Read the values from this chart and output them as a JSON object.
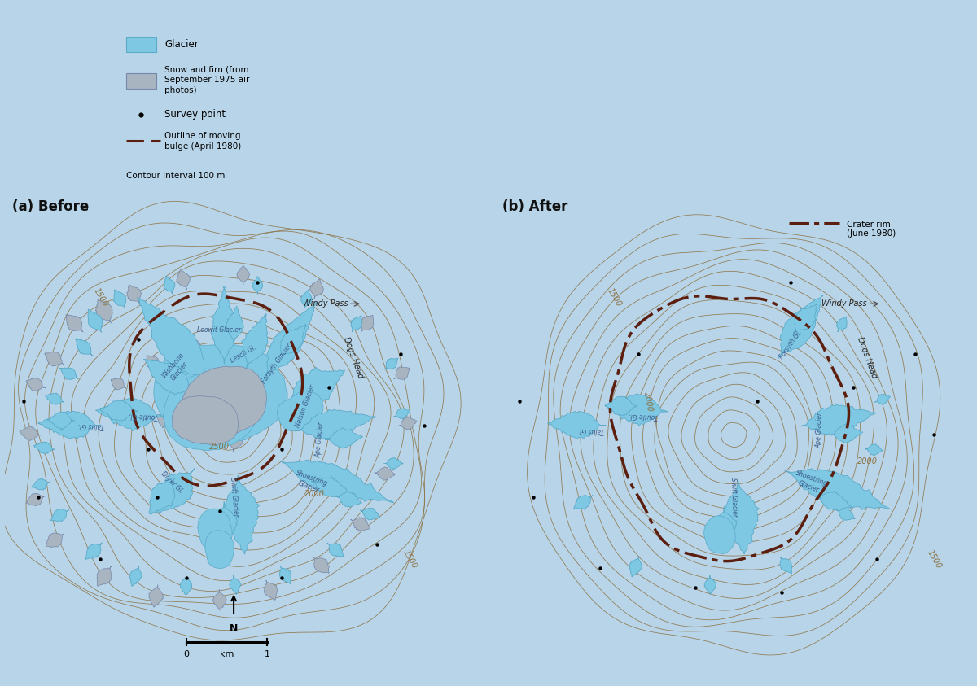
{
  "background_sky": "#b8d4e8",
  "background_map": "#f5eecc",
  "contour_color": "#8b7040",
  "glacier_color": "#7ec8e3",
  "glacier_edge": "#5aaac8",
  "snow_firn_color": "#a8b4c0",
  "snow_firn_edge": "#7788aa",
  "bulge_color": "#5c1f0f",
  "crater_color": "#5c1f0f",
  "text_glacier": "#3a5a8a",
  "contour_label_color": "#8b7040",
  "title_a": "(a) Before",
  "title_b": "(b) After",
  "legend_b_item": "Crater rim\n(June 1980)"
}
